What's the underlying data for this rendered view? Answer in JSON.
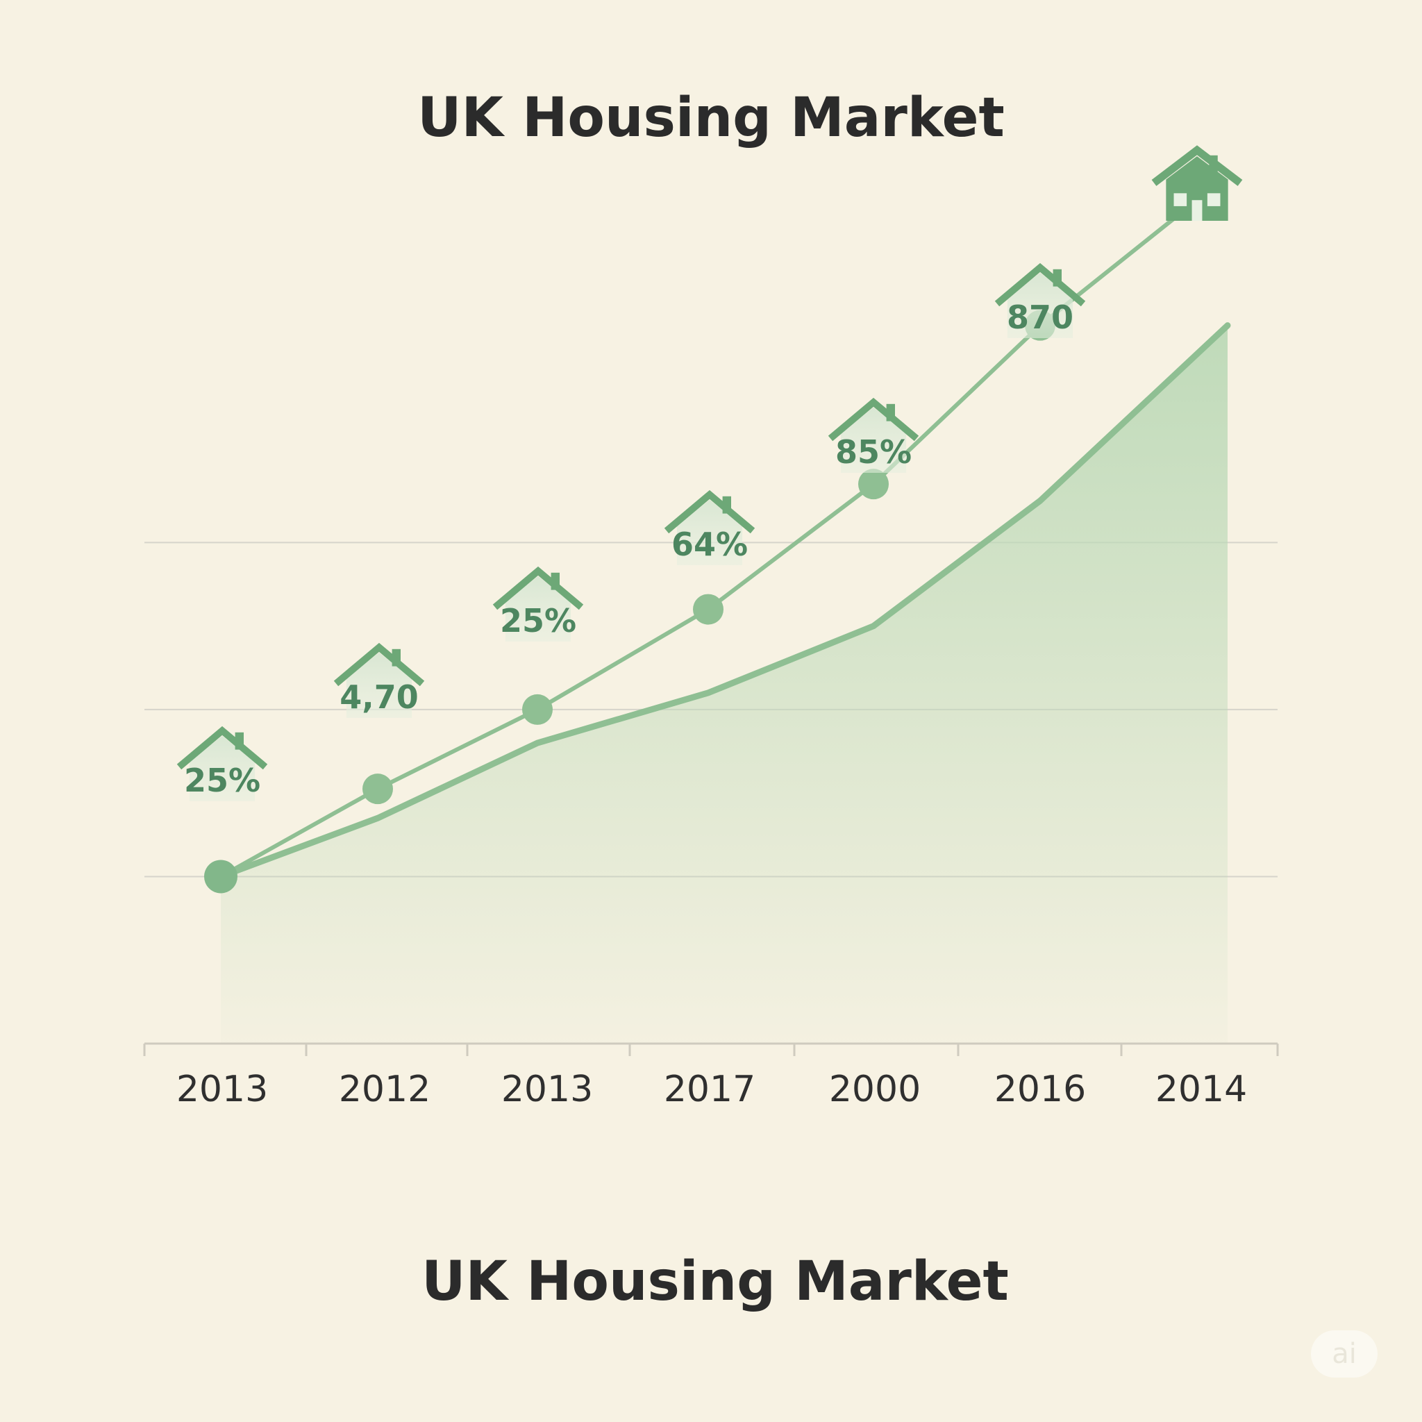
{
  "chart_data": {
    "type": "line",
    "title": "UK Housing Market",
    "subtitle": "UK Housing Market",
    "categories": [
      "2013",
      "2012",
      "2013",
      "2017",
      "2000",
      "2016",
      "2014"
    ],
    "series": [
      {
        "values": [
          2.0,
          3.05,
          4.0,
          5.2,
          6.7,
          8.6,
          10.1
        ],
        "labels": [
          "25%",
          "4,70",
          "25%",
          "64%",
          "85%",
          "870",
          ""
        ]
      },
      {
        "values": [
          2.0,
          2.7,
          3.6,
          4.2,
          5.0,
          6.5,
          8.6
        ]
      }
    ],
    "ylim": [
      0,
      11
    ],
    "grid": true,
    "gridlines_at": [
      2,
      4,
      6
    ],
    "colors": {
      "background": "#f7f2e3",
      "line": "#8fbf93",
      "marker": "#8fbf93",
      "area": "#bcd9b7",
      "house": "#6da877",
      "label": "#4d8660"
    },
    "watermark": "ai",
    "icons": [
      "house-icon"
    ]
  }
}
